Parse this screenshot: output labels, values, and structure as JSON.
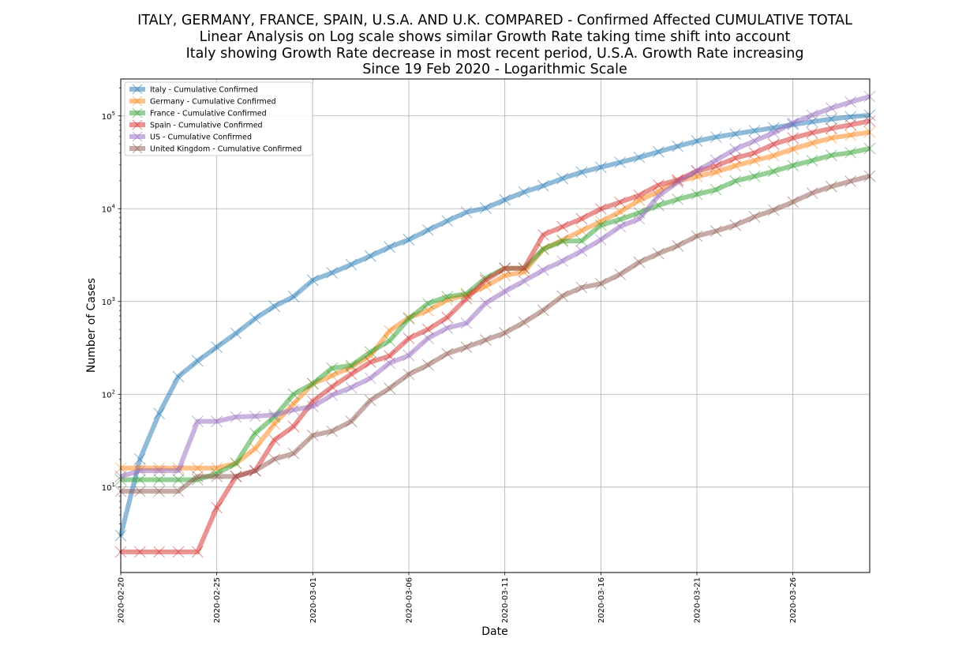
{
  "chart_data": {
    "type": "line",
    "title_lines": [
      "ITALY, GERMANY, FRANCE, SPAIN, U.S.A. AND U.K. COMPARED - Confirmed Affected CUMULATIVE TOTAL",
      "Linear Analysis on Log scale shows similar Growth Rate taking time shift into account",
      "Italy showing Growth Rate decrease in most recent period, U.S.A. Growth Rate increasing",
      "Since 19 Feb 2020 - Logarithmic Scale"
    ],
    "xlabel": "Date",
    "ylabel": "Number of Cases",
    "x_scale": "date",
    "y_scale": "log",
    "xlim": [
      "2020-02-20",
      "2020-03-30"
    ],
    "ylim": [
      1.2,
      250000
    ],
    "x_ticks": [
      "2020-02-20",
      "2020-02-25",
      "2020-03-01",
      "2020-03-06",
      "2020-03-11",
      "2020-03-16",
      "2020-03-21",
      "2020-03-26"
    ],
    "y_ticks": [
      {
        "value": 10,
        "base": "10",
        "exp": "1"
      },
      {
        "value": 100,
        "base": "10",
        "exp": "2"
      },
      {
        "value": 1000,
        "base": "10",
        "exp": "3"
      },
      {
        "value": 10000,
        "base": "10",
        "exp": "4"
      },
      {
        "value": 100000,
        "base": "10",
        "exp": "5"
      }
    ],
    "grid": true,
    "legend_position": "top-left",
    "x": [
      "2020-02-20",
      "2020-02-21",
      "2020-02-22",
      "2020-02-23",
      "2020-02-24",
      "2020-02-25",
      "2020-02-26",
      "2020-02-27",
      "2020-02-28",
      "2020-02-29",
      "2020-03-01",
      "2020-03-02",
      "2020-03-03",
      "2020-03-04",
      "2020-03-05",
      "2020-03-06",
      "2020-03-07",
      "2020-03-08",
      "2020-03-09",
      "2020-03-10",
      "2020-03-11",
      "2020-03-12",
      "2020-03-13",
      "2020-03-14",
      "2020-03-15",
      "2020-03-16",
      "2020-03-17",
      "2020-03-18",
      "2020-03-19",
      "2020-03-20",
      "2020-03-21",
      "2020-03-22",
      "2020-03-23",
      "2020-03-24",
      "2020-03-25",
      "2020-03-26",
      "2020-03-27",
      "2020-03-28",
      "2020-03-29",
      "2020-03-30"
    ],
    "series": [
      {
        "name": "Italy - Cumulative Confirmed",
        "color": "#1f77b4",
        "values": [
          3,
          20,
          62,
          155,
          229,
          322,
          453,
          655,
          888,
          1128,
          1694,
          2036,
          2502,
          3089,
          3858,
          4636,
          5883,
          7375,
          9172,
          10149,
          12462,
          15113,
          17660,
          21157,
          24747,
          27980,
          31506,
          35713,
          41035,
          47021,
          53578,
          59138,
          63927,
          69176,
          74386,
          80589,
          86498,
          92472,
          97689,
          101739
        ]
      },
      {
        "name": "Germany - Cumulative Confirmed",
        "color": "#ff7f0e",
        "values": [
          16,
          16,
          16,
          16,
          16,
          16,
          18,
          26,
          48,
          79,
          130,
          159,
          196,
          262,
          482,
          670,
          799,
          1040,
          1176,
          1457,
          1908,
          2078,
          3675,
          4585,
          5795,
          7272,
          9257,
          12327,
          15320,
          19848,
          22213,
          24873,
          29056,
          32986,
          37323,
          43938,
          50871,
          57695,
          62095,
          66885
        ]
      },
      {
        "name": "France - Cumulative Confirmed",
        "color": "#2ca02c",
        "values": [
          12,
          12,
          12,
          12,
          12,
          14,
          18,
          38,
          57,
          100,
          130,
          191,
          204,
          285,
          377,
          653,
          949,
          1126,
          1209,
          1784,
          2281,
          2281,
          3661,
          4469,
          4499,
          6633,
          7652,
          9043,
          10871,
          12612,
          14282,
          16018,
          19856,
          22304,
          25233,
          29155,
          32964,
          37575,
          40174,
          44550
        ]
      },
      {
        "name": "Spain - Cumulative Confirmed",
        "color": "#d62728",
        "values": [
          2,
          2,
          2,
          2,
          2,
          6,
          13,
          15,
          32,
          45,
          84,
          120,
          165,
          222,
          259,
          400,
          500,
          673,
          1073,
          1695,
          2277,
          2277,
          5232,
          6391,
          7798,
          9942,
          11748,
          13910,
          17963,
          20410,
          25374,
          28768,
          35136,
          39885,
          49515,
          57786,
          65719,
          73235,
          80110,
          87956
        ]
      },
      {
        "name": "US - Cumulative Confirmed",
        "color": "#9467bd",
        "values": [
          13,
          15,
          15,
          15,
          51,
          51,
          57,
          58,
          60,
          68,
          74,
          98,
          118,
          149,
          217,
          262,
          402,
          518,
          583,
          959,
          1281,
          1663,
          2179,
          2727,
          3499,
          4632,
          6421,
          7783,
          13747,
          19273,
          25600,
          33276,
          43847,
          53740,
          65778,
          83836,
          101657,
          121478,
          140886,
          161807
        ]
      },
      {
        "name": "United Kingdom - Cumulative Confirmed",
        "color": "#8c564b",
        "values": [
          9,
          9,
          9,
          9,
          13,
          13,
          13,
          15,
          20,
          23,
          36,
          40,
          51,
          86,
          116,
          164,
          207,
          274,
          322,
          384,
          459,
          596,
          803,
          1145,
          1412,
          1552,
          1960,
          2647,
          3281,
          3983,
          5067,
          5741,
          6641,
          8171,
          9656,
          11812,
          14745,
          17312,
          19780,
          22453
        ]
      }
    ]
  }
}
